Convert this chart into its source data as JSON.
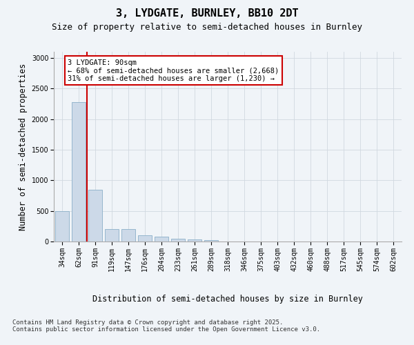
{
  "title": "3, LYDGATE, BURNLEY, BB10 2DT",
  "subtitle": "Size of property relative to semi-detached houses in Burnley",
  "xlabel": "Distribution of semi-detached houses by size in Burnley",
  "ylabel": "Number of semi-detached properties",
  "categories": [
    "34sqm",
    "62sqm",
    "91sqm",
    "119sqm",
    "147sqm",
    "176sqm",
    "204sqm",
    "233sqm",
    "261sqm",
    "289sqm",
    "318sqm",
    "346sqm",
    "375sqm",
    "403sqm",
    "432sqm",
    "460sqm",
    "488sqm",
    "517sqm",
    "545sqm",
    "574sqm",
    "602sqm"
  ],
  "values": [
    500,
    2275,
    850,
    205,
    200,
    100,
    75,
    50,
    35,
    20,
    5,
    5,
    2,
    1,
    0,
    0,
    0,
    0,
    0,
    0,
    0
  ],
  "bar_color": "#ccd9e8",
  "bar_edge_color": "#8aafc8",
  "annotation_text": "3 LYDGATE: 90sqm\n← 68% of semi-detached houses are smaller (2,668)\n31% of semi-detached houses are larger (1,230) →",
  "annotation_box_color": "#ffffff",
  "annotation_box_edge": "#cc0000",
  "vline_color": "#cc0000",
  "footer_text": "Contains HM Land Registry data © Crown copyright and database right 2025.\nContains public sector information licensed under the Open Government Licence v3.0.",
  "ylim": [
    0,
    3100
  ],
  "yticks": [
    0,
    500,
    1000,
    1500,
    2000,
    2500,
    3000
  ],
  "grid_color": "#d0d8e0",
  "bg_color": "#f0f4f8",
  "title_fontsize": 11,
  "subtitle_fontsize": 9,
  "axis_label_fontsize": 8.5,
  "tick_fontsize": 7,
  "footer_fontsize": 6.5,
  "annotation_fontsize": 7.5
}
